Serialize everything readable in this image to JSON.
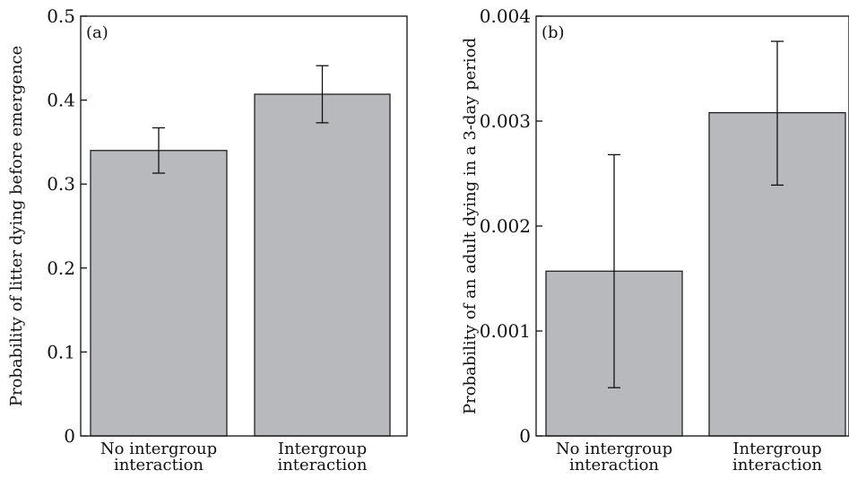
{
  "chart_data": [
    {
      "type": "bar",
      "panel_label": "(a)",
      "categories": [
        "No intergroup interaction",
        "Intergroup interaction"
      ],
      "category_lines": [
        [
          "No intergroup",
          "interaction"
        ],
        [
          "Intergroup",
          "interaction"
        ]
      ],
      "values": [
        0.34,
        0.407
      ],
      "error_low": [
        0.313,
        0.373
      ],
      "error_high": [
        0.367,
        0.441
      ],
      "ylabel": "Probability of litter dying before emergence",
      "ylim": [
        0,
        0.5
      ],
      "yticks": [
        0,
        0.1,
        0.2,
        0.3,
        0.4,
        0.5
      ],
      "ytick_labels": [
        "0",
        "0.1",
        "0.2",
        "0.3",
        "0.4",
        "0.5"
      ],
      "bar_color": "#b8b9bd",
      "grid": false,
      "legend": "none"
    },
    {
      "type": "bar",
      "panel_label": "(b)",
      "categories": [
        "No intergroup interaction",
        "Intergroup interaction"
      ],
      "category_lines": [
        [
          "No intergroup",
          "interaction"
        ],
        [
          "Intergroup",
          "interaction"
        ]
      ],
      "values": [
        0.00157,
        0.00308
      ],
      "error_low": [
        0.00046,
        0.00239
      ],
      "error_high": [
        0.00268,
        0.00376
      ],
      "ylabel": "Probability of an adult dying in a 3-day period",
      "ylim": [
        0,
        0.004
      ],
      "yticks": [
        0,
        0.001,
        0.002,
        0.003,
        0.004
      ],
      "ytick_labels": [
        "0",
        "0.001",
        "0.002",
        "0.003",
        "0.004"
      ],
      "bar_color": "#b8b9bd",
      "grid": false,
      "legend": "none"
    }
  ]
}
